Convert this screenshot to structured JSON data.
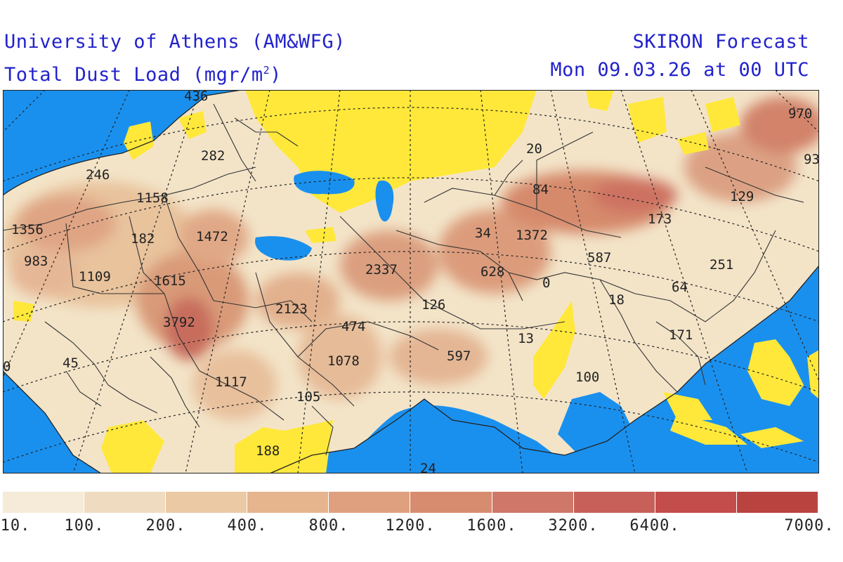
{
  "header": {
    "line1_left": "University of Athens (AM&WFG)",
    "line2_left_main": "Total Dust Load (mgr/m",
    "line2_left_sup": "2",
    "line2_left_end": ")",
    "line1_right": "SKIRON Forecast",
    "line2_right": "Mon 09.03.26 at 00 UTC"
  },
  "map": {
    "ocean_color": "#1a90ee",
    "low_color": "#ffe83a",
    "values": [
      {
        "id": "v-246",
        "text": "246"
      },
      {
        "id": "v-282",
        "text": "282"
      },
      {
        "id": "v-436",
        "text": "436"
      },
      {
        "id": "v-1158",
        "text": "1158"
      },
      {
        "id": "v-1356",
        "text": "1356"
      },
      {
        "id": "v-182",
        "text": "182"
      },
      {
        "id": "v-1472",
        "text": "1472"
      },
      {
        "id": "v-983",
        "text": "983"
      },
      {
        "id": "v-1109",
        "text": "1109"
      },
      {
        "id": "v-1615",
        "text": "1615"
      },
      {
        "id": "v-3792",
        "text": "3792"
      },
      {
        "id": "v-2123",
        "text": "2123"
      },
      {
        "id": "v-45",
        "text": "45"
      },
      {
        "id": "v-0a",
        "text": "0"
      },
      {
        "id": "v-1117",
        "text": "1117"
      },
      {
        "id": "v-105",
        "text": "105"
      },
      {
        "id": "v-1078",
        "text": "1078"
      },
      {
        "id": "v-474",
        "text": "474"
      },
      {
        "id": "v-2337",
        "text": "2337"
      },
      {
        "id": "v-126",
        "text": "126"
      },
      {
        "id": "v-597",
        "text": "597"
      },
      {
        "id": "v-188",
        "text": "188"
      },
      {
        "id": "v-24",
        "text": "24"
      },
      {
        "id": "v-628",
        "text": "628"
      },
      {
        "id": "v-34",
        "text": "34"
      },
      {
        "id": "v-1372",
        "text": "1372"
      },
      {
        "id": "v-84",
        "text": "84"
      },
      {
        "id": "v-20",
        "text": "20"
      },
      {
        "id": "v-13",
        "text": "13"
      },
      {
        "id": "v-0b",
        "text": "0"
      },
      {
        "id": "v-587",
        "text": "587"
      },
      {
        "id": "v-18",
        "text": "18"
      },
      {
        "id": "v-100",
        "text": "100"
      },
      {
        "id": "v-173",
        "text": "173"
      },
      {
        "id": "v-171",
        "text": "171"
      },
      {
        "id": "v-64",
        "text": "64"
      },
      {
        "id": "v-251",
        "text": "251"
      },
      {
        "id": "v-129",
        "text": "129"
      },
      {
        "id": "v-970",
        "text": "970"
      },
      {
        "id": "v-93",
        "text": "93"
      }
    ]
  },
  "legend": {
    "colors": [
      "#f5ebd8",
      "#efdcc0",
      "#ebc9a4",
      "#e6b48d",
      "#dfa07f",
      "#d88c6f",
      "#cf7768",
      "#c8605a",
      "#c24d4b",
      "#b9443f"
    ],
    "ticks": [
      "10.",
      "100.",
      "200.",
      "400.",
      "800.",
      "1200.",
      "1600.",
      "3200.",
      "6400.",
      "7000."
    ]
  }
}
